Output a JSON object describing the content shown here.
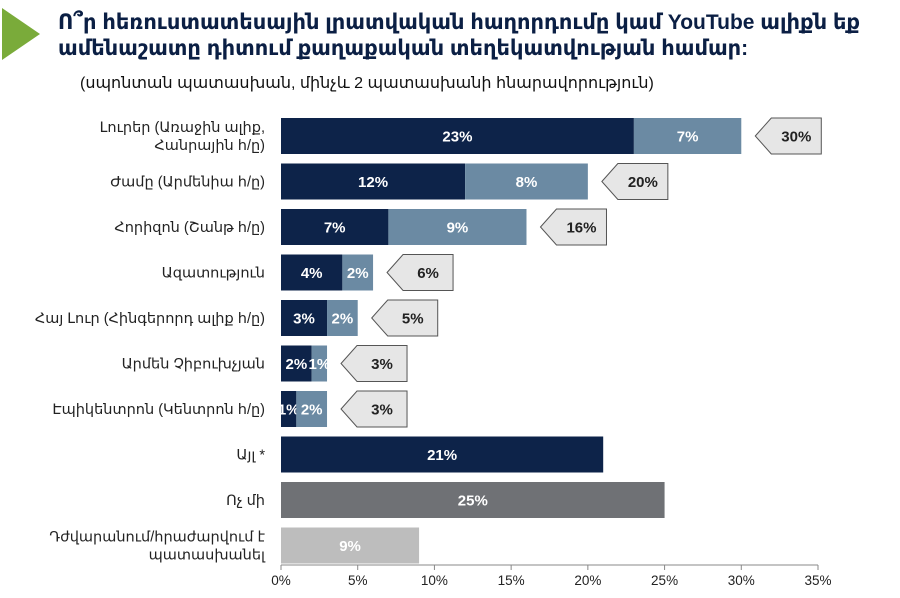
{
  "header": {
    "title": "Ո՞ր հեռուստատեսային լրատվական հաղորդումը կամ YouTube ալիքն եք ամենաշատը դիտում քաղաքական տեղեկատվության համար:",
    "subtitle": "(սպոնտան պատասխան, մինչև 2 պատասխանի հնարավորություն)"
  },
  "chart_data": {
    "type": "bar",
    "orientation": "horizontal",
    "stacked": true,
    "categories": [
      [
        "Լուրեր (Առաջին ալիք,",
        "Հանրային հ/ը)"
      ],
      [
        "Ժամը (Արմենիա հ/ը)"
      ],
      [
        "Հորիզոն (Շանթ հ/ը)"
      ],
      [
        "Ազատություն"
      ],
      [
        "Հայ Լուր (Հինգերորդ ալիք հ/ը)"
      ],
      [
        "Արմեն Չիբուխչյան"
      ],
      [
        "Էպիկենտրոն (Կենտրոն հ/ը)"
      ],
      [
        "Այլ *"
      ],
      [
        "Ոչ մի"
      ],
      [
        "Դժվարանում/հրաժարվում է",
        "պատասխանել"
      ]
    ],
    "series": [
      {
        "name": "first",
        "color": "#0d2349",
        "values": [
          23,
          12,
          7,
          4,
          3,
          2,
          1,
          21,
          25,
          9
        ],
        "labels": [
          "23%",
          "12%",
          "7%",
          "4%",
          "3%",
          "2%",
          "1%",
          "21%",
          "25%",
          "9%"
        ],
        "colors": [
          "#0d2349",
          "#0d2349",
          "#0d2349",
          "#0d2349",
          "#0d2349",
          "#0d2349",
          "#0d2349",
          "#0d2349",
          "#6f7175",
          "#bdbdbd"
        ]
      },
      {
        "name": "second",
        "color": "#6b8aa3",
        "values": [
          7,
          8,
          9,
          2,
          2,
          1,
          2,
          null,
          null,
          null
        ],
        "labels": [
          "7%",
          "8%",
          "9%",
          "2%",
          "2%",
          "1%",
          "2%",
          null,
          null,
          null
        ]
      }
    ],
    "totals": [
      "30%",
      "20%",
      "16%",
      "6%",
      "5%",
      "3%",
      "3%",
      null,
      null,
      null
    ],
    "xlim": [
      0,
      35
    ],
    "xticks": [
      0,
      5,
      10,
      15,
      20,
      25,
      30,
      35
    ],
    "xtick_labels": [
      "0%",
      "5%",
      "10%",
      "15%",
      "20%",
      "25%",
      "30%",
      "35%"
    ],
    "grid": false
  }
}
